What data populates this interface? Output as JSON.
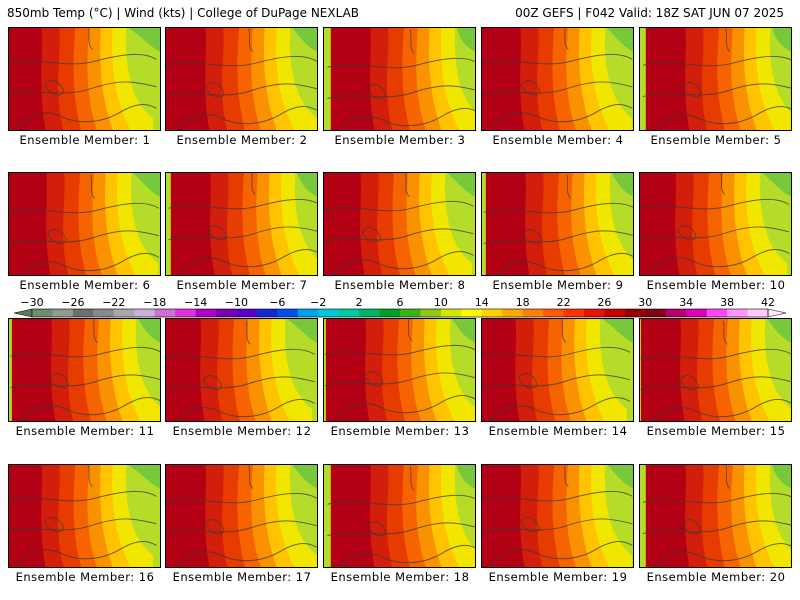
{
  "header": {
    "left": "850mb Temp (°C) | Wind (kts) | College of DuPage NEXLAB",
    "right": "00Z GEFS | F042 Valid: 18Z SAT JUN 07 2025"
  },
  "members": [
    "Ensemble Member: 1",
    "Ensemble Member: 2",
    "Ensemble Member: 3",
    "Ensemble Member: 4",
    "Ensemble Member: 5",
    "Ensemble Member: 6",
    "Ensemble Member: 7",
    "Ensemble Member: 8",
    "Ensemble Member: 9",
    "Ensemble Member: 10",
    "Ensemble Member: 11",
    "Ensemble Member: 12",
    "Ensemble Member: 13",
    "Ensemble Member: 14",
    "Ensemble Member: 15",
    "Ensemble Member: 16",
    "Ensemble Member: 17",
    "Ensemble Member: 18",
    "Ensemble Member: 19",
    "Ensemble Member: 20"
  ],
  "colorbar": {
    "tick_labels": [
      "−30",
      "−26",
      "−22",
      "−18",
      "−14",
      "−10",
      "−6",
      "−2",
      "2",
      "6",
      "10",
      "14",
      "18",
      "22",
      "26",
      "30",
      "34",
      "38",
      "42"
    ],
    "colors": [
      "#6e8c6e",
      "#8f9c8f",
      "#6f6f6f",
      "#8a8a8a",
      "#a8a8a8",
      "#c6b0dc",
      "#d070d0",
      "#e030e0",
      "#b000c8",
      "#7800b4",
      "#5a00c8",
      "#1428d2",
      "#0050f0",
      "#00a0f0",
      "#00c8dc",
      "#00c8a0",
      "#00b464",
      "#00a028",
      "#3cb414",
      "#8cc814",
      "#d2e600",
      "#fafa00",
      "#ffd200",
      "#ffaa00",
      "#ff8200",
      "#ff5a00",
      "#ff3200",
      "#e61400",
      "#c80000",
      "#960000",
      "#820014",
      "#b4006e",
      "#dc00b4",
      "#ff46ff",
      "#ff96ff",
      "#ffc8ff"
    ]
  }
}
